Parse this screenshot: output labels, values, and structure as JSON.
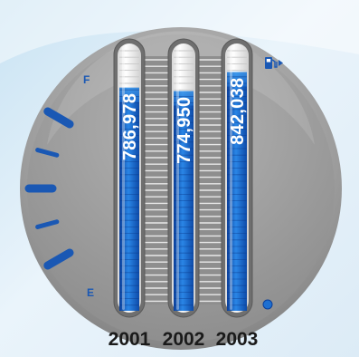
{
  "chart_data": {
    "type": "bar",
    "style": "fuel-gauge thermometer bars",
    "categories": [
      "2001",
      "2002",
      "2003"
    ],
    "values": [
      786978,
      774950,
      842038
    ],
    "value_labels": [
      "786,978",
      "774,950",
      "842,038"
    ],
    "ylim": [
      0,
      930000
    ],
    "gauge_labels": {
      "full": "F",
      "empty": "E"
    },
    "grid": false,
    "colors": {
      "fill": "#1e6fd0",
      "fill_dark": "#0b3f9a",
      "empty": "#f4f4f4",
      "dial": "#9a9a9a",
      "accent": "#1a58b4"
    },
    "icons": [
      "fuel-pump-icon",
      "indicator-dot-icon"
    ]
  }
}
